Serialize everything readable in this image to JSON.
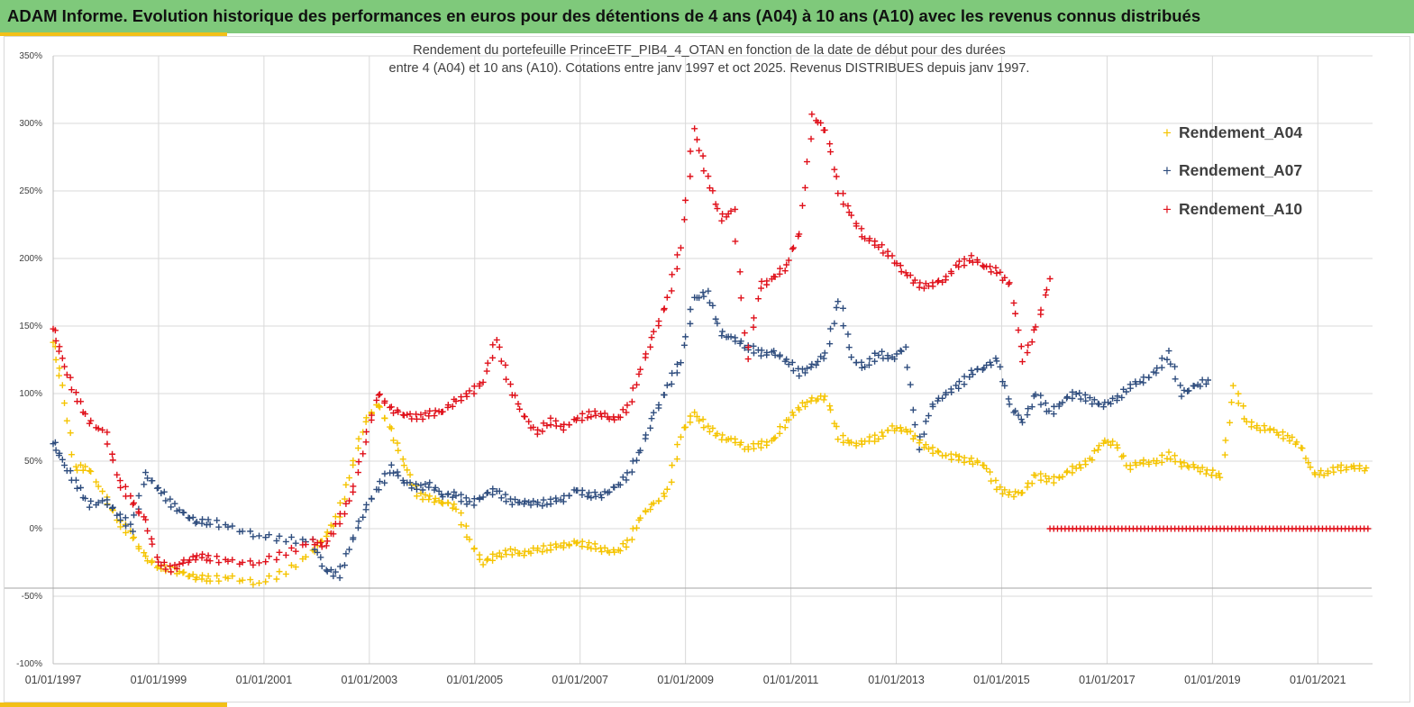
{
  "header": {
    "title": "ADAM Informe. Evolution historique des performances en euros pour des détentions de 4 ans (A04) à 10 ans (A10) avec les revenus connus distribués"
  },
  "colors": {
    "banner": "#7fc97b",
    "accent_bar": "#f2c018",
    "a04": "#f5c400",
    "a07": "#2f4d7e",
    "a10": "#e0101a"
  },
  "chart_data": {
    "type": "scatter",
    "title": [
      "Rendement du portefeuille PrinceETF_PIB4_4_OTAN  en fonction de la date de début pour des durées",
      "entre 4 (A04) et 10 ans (A10). Cotations  entre janv 1997 et oct 2025. Revenus DISTRIBUES depuis janv 1997."
    ],
    "xlabel": "",
    "ylabel": "",
    "x_ticks": [
      "01/01/1997",
      "01/01/1999",
      "01/01/2001",
      "01/01/2003",
      "01/01/2005",
      "01/01/2007",
      "01/01/2009",
      "01/01/2011",
      "01/01/2013",
      "01/01/2015",
      "01/01/2017",
      "01/01/2019",
      "01/01/2021"
    ],
    "y_ticks": [
      "350%",
      "300%",
      "250%",
      "200%",
      "150%",
      "100%",
      "50%",
      "0%",
      "-50%",
      "-100%"
    ],
    "ylim": [
      -1.0,
      3.5
    ],
    "xlim": [
      "1997-01-01",
      "2022-01-15"
    ],
    "grid": true,
    "legend_position": "top-right",
    "series": [
      {
        "name": "Rendement_A04",
        "color": "#f5c400",
        "x": [
          "1997-01",
          "1997-03",
          "1997-06",
          "1997-09",
          "1998-01",
          "1998-04",
          "1998-07",
          "1998-10",
          "1999-01",
          "1999-04",
          "1999-07",
          "1999-10",
          "2000-01",
          "2000-06",
          "2000-12",
          "2001-06",
          "2001-12",
          "2002-03",
          "2002-06",
          "2002-09",
          "2002-12",
          "2003-03",
          "2003-06",
          "2003-09",
          "2003-12",
          "2004-03",
          "2004-06",
          "2004-09",
          "2004-12",
          "2005-03",
          "2005-06",
          "2005-09",
          "2005-12",
          "2006-03",
          "2006-06",
          "2006-09",
          "2006-12",
          "2007-03",
          "2007-06",
          "2007-09",
          "2007-12",
          "2008-03",
          "2008-06",
          "2008-09",
          "2008-12",
          "2009-03",
          "2009-06",
          "2009-09",
          "2009-12",
          "2010-03",
          "2010-06",
          "2010-09",
          "2010-12",
          "2011-03",
          "2011-06",
          "2011-09",
          "2011-12",
          "2012-03",
          "2012-06",
          "2012-09",
          "2012-12",
          "2013-03",
          "2013-06",
          "2013-09",
          "2013-12",
          "2014-03",
          "2014-06",
          "2014-09",
          "2014-12",
          "2015-03",
          "2015-06",
          "2015-09",
          "2015-12",
          "2016-03",
          "2016-06",
          "2016-09",
          "2016-12",
          "2017-03",
          "2017-06",
          "2017-09",
          "2017-12",
          "2018-03",
          "2018-06",
          "2018-09",
          "2018-12",
          "2019-03",
          "2019-06",
          "2019-09",
          "2019-12",
          "2020-03",
          "2020-06",
          "2020-09",
          "2020-12",
          "2021-03",
          "2021-06",
          "2021-09",
          "2021-12"
        ],
        "values": [
          1.4,
          1.05,
          0.45,
          0.45,
          0.22,
          0.05,
          -0.05,
          -0.22,
          -0.28,
          -0.3,
          -0.34,
          -0.36,
          -0.37,
          -0.37,
          -0.4,
          -0.32,
          -0.18,
          -0.05,
          0.1,
          0.45,
          0.8,
          0.92,
          0.72,
          0.48,
          0.25,
          0.22,
          0.2,
          0.15,
          -0.1,
          -0.25,
          -0.2,
          -0.17,
          -0.18,
          -0.16,
          -0.14,
          -0.12,
          -0.11,
          -0.12,
          -0.15,
          -0.18,
          -0.1,
          0.1,
          0.18,
          0.28,
          0.7,
          0.85,
          0.75,
          0.68,
          0.65,
          0.6,
          0.62,
          0.65,
          0.8,
          0.9,
          0.95,
          0.98,
          0.68,
          0.62,
          0.65,
          0.68,
          0.74,
          0.74,
          0.65,
          0.58,
          0.55,
          0.52,
          0.5,
          0.48,
          0.3,
          0.25,
          0.28,
          0.4,
          0.35,
          0.4,
          0.45,
          0.5,
          0.65,
          0.62,
          0.45,
          0.5,
          0.48,
          0.55,
          0.48,
          0.45,
          0.42,
          0.4,
          1.05,
          0.78,
          0.75,
          0.72,
          0.68,
          0.62,
          0.4,
          0.42,
          0.45,
          0.45,
          0.45
        ]
      },
      {
        "name": "Rendement_A07",
        "color": "#2f4d7e",
        "x": [
          "1997-01",
          "1997-03",
          "1997-06",
          "1997-09",
          "1998-01",
          "1998-04",
          "1998-07",
          "1998-10",
          "1999-01",
          "1999-04",
          "1999-07",
          "1999-10",
          "2000-01",
          "2000-06",
          "2000-12",
          "2001-06",
          "2001-12",
          "2002-03",
          "2002-06",
          "2002-09",
          "2002-12",
          "2003-03",
          "2003-06",
          "2003-09",
          "2003-12",
          "2004-03",
          "2004-06",
          "2004-09",
          "2004-12",
          "2005-03",
          "2005-06",
          "2005-09",
          "2005-12",
          "2006-03",
          "2006-06",
          "2006-09",
          "2006-12",
          "2007-03",
          "2007-06",
          "2007-09",
          "2007-12",
          "2008-03",
          "2008-06",
          "2008-09",
          "2008-12",
          "2009-03",
          "2009-06",
          "2009-09",
          "2009-12",
          "2010-03",
          "2010-06",
          "2010-09",
          "2010-12",
          "2011-03",
          "2011-06",
          "2011-09",
          "2011-12",
          "2012-03",
          "2012-06",
          "2012-09",
          "2012-12",
          "2013-03",
          "2013-06",
          "2013-09",
          "2013-12",
          "2014-03",
          "2014-06",
          "2014-09",
          "2014-12",
          "2015-03",
          "2015-06",
          "2015-09",
          "2015-12",
          "2016-03",
          "2016-06",
          "2016-09",
          "2016-12",
          "2017-03",
          "2017-06",
          "2017-09",
          "2017-12",
          "2018-03",
          "2018-06",
          "2018-09",
          "2018-12"
        ],
        "values": [
          0.65,
          0.5,
          0.35,
          0.18,
          0.2,
          0.1,
          0.0,
          0.4,
          0.3,
          0.18,
          0.1,
          0.05,
          0.05,
          0.0,
          -0.05,
          -0.08,
          -0.1,
          -0.3,
          -0.35,
          -0.1,
          0.15,
          0.3,
          0.45,
          0.35,
          0.3,
          0.32,
          0.25,
          0.25,
          0.18,
          0.25,
          0.28,
          0.2,
          0.2,
          0.18,
          0.2,
          0.22,
          0.28,
          0.25,
          0.25,
          0.3,
          0.4,
          0.6,
          0.85,
          1.05,
          1.25,
          1.7,
          1.75,
          1.45,
          1.4,
          1.35,
          1.3,
          1.3,
          1.25,
          1.15,
          1.2,
          1.3,
          1.7,
          1.25,
          1.2,
          1.3,
          1.25,
          1.35,
          0.6,
          0.9,
          1.0,
          1.05,
          1.15,
          1.2,
          1.25,
          0.9,
          0.8,
          1.0,
          0.85,
          0.95,
          1.0,
          0.95,
          0.92,
          0.95,
          1.05,
          1.1,
          1.15,
          1.3,
          1.0,
          1.05,
          1.1
        ]
      },
      {
        "name": "Rendement_A10",
        "color": "#e0101a",
        "x": [
          "1997-01",
          "1997-03",
          "1997-06",
          "1997-09",
          "1998-01",
          "1998-04",
          "1998-07",
          "1998-10",
          "1999-01",
          "1999-04",
          "1999-07",
          "1999-10",
          "2000-01",
          "2000-06",
          "2000-12",
          "2001-06",
          "2001-12",
          "2002-03",
          "2002-06",
          "2002-09",
          "2002-12",
          "2003-03",
          "2003-06",
          "2003-09",
          "2003-12",
          "2004-03",
          "2004-06",
          "2004-09",
          "2004-12",
          "2005-03",
          "2005-06",
          "2005-09",
          "2005-12",
          "2006-03",
          "2006-06",
          "2006-09",
          "2006-12",
          "2007-03",
          "2007-06",
          "2007-09",
          "2007-12",
          "2008-03",
          "2008-06",
          "2008-09",
          "2008-12",
          "2009-03",
          "2009-06",
          "2009-09",
          "2009-12",
          "2010-03",
          "2010-06",
          "2010-09",
          "2010-12",
          "2011-03",
          "2011-06",
          "2011-09",
          "2011-12",
          "2012-03",
          "2012-06",
          "2012-09",
          "2012-12",
          "2013-03",
          "2013-06",
          "2013-09",
          "2013-12",
          "2014-03",
          "2014-06",
          "2014-09",
          "2014-12",
          "2015-03",
          "2015-06",
          "2015-09",
          "2015-12"
        ],
        "values": [
          1.5,
          1.25,
          1.0,
          0.8,
          0.7,
          0.35,
          0.2,
          0.05,
          -0.25,
          -0.3,
          -0.25,
          -0.2,
          -0.22,
          -0.25,
          -0.25,
          -0.18,
          -0.1,
          -0.12,
          0.05,
          0.25,
          0.65,
          1.0,
          0.88,
          0.85,
          0.82,
          0.85,
          0.88,
          0.95,
          1.0,
          1.1,
          1.4,
          1.05,
          0.85,
          0.7,
          0.8,
          0.75,
          0.8,
          0.85,
          0.85,
          0.8,
          0.9,
          1.2,
          1.45,
          1.7,
          2.1,
          2.95,
          2.6,
          2.3,
          2.35,
          1.25,
          1.8,
          1.85,
          1.95,
          2.2,
          3.05,
          2.95,
          2.5,
          2.3,
          2.15,
          2.1,
          2.0,
          1.9,
          1.8,
          1.8,
          1.85,
          1.95,
          2.0,
          1.95,
          1.9,
          1.8,
          1.25,
          1.5,
          1.85
        ]
      },
      {
        "name": "",
        "color": "#e0101a",
        "x": [
          "2015-12",
          "2022-01"
        ],
        "values": [
          0.0,
          0.0
        ],
        "constant_zero_segment": true
      }
    ]
  }
}
